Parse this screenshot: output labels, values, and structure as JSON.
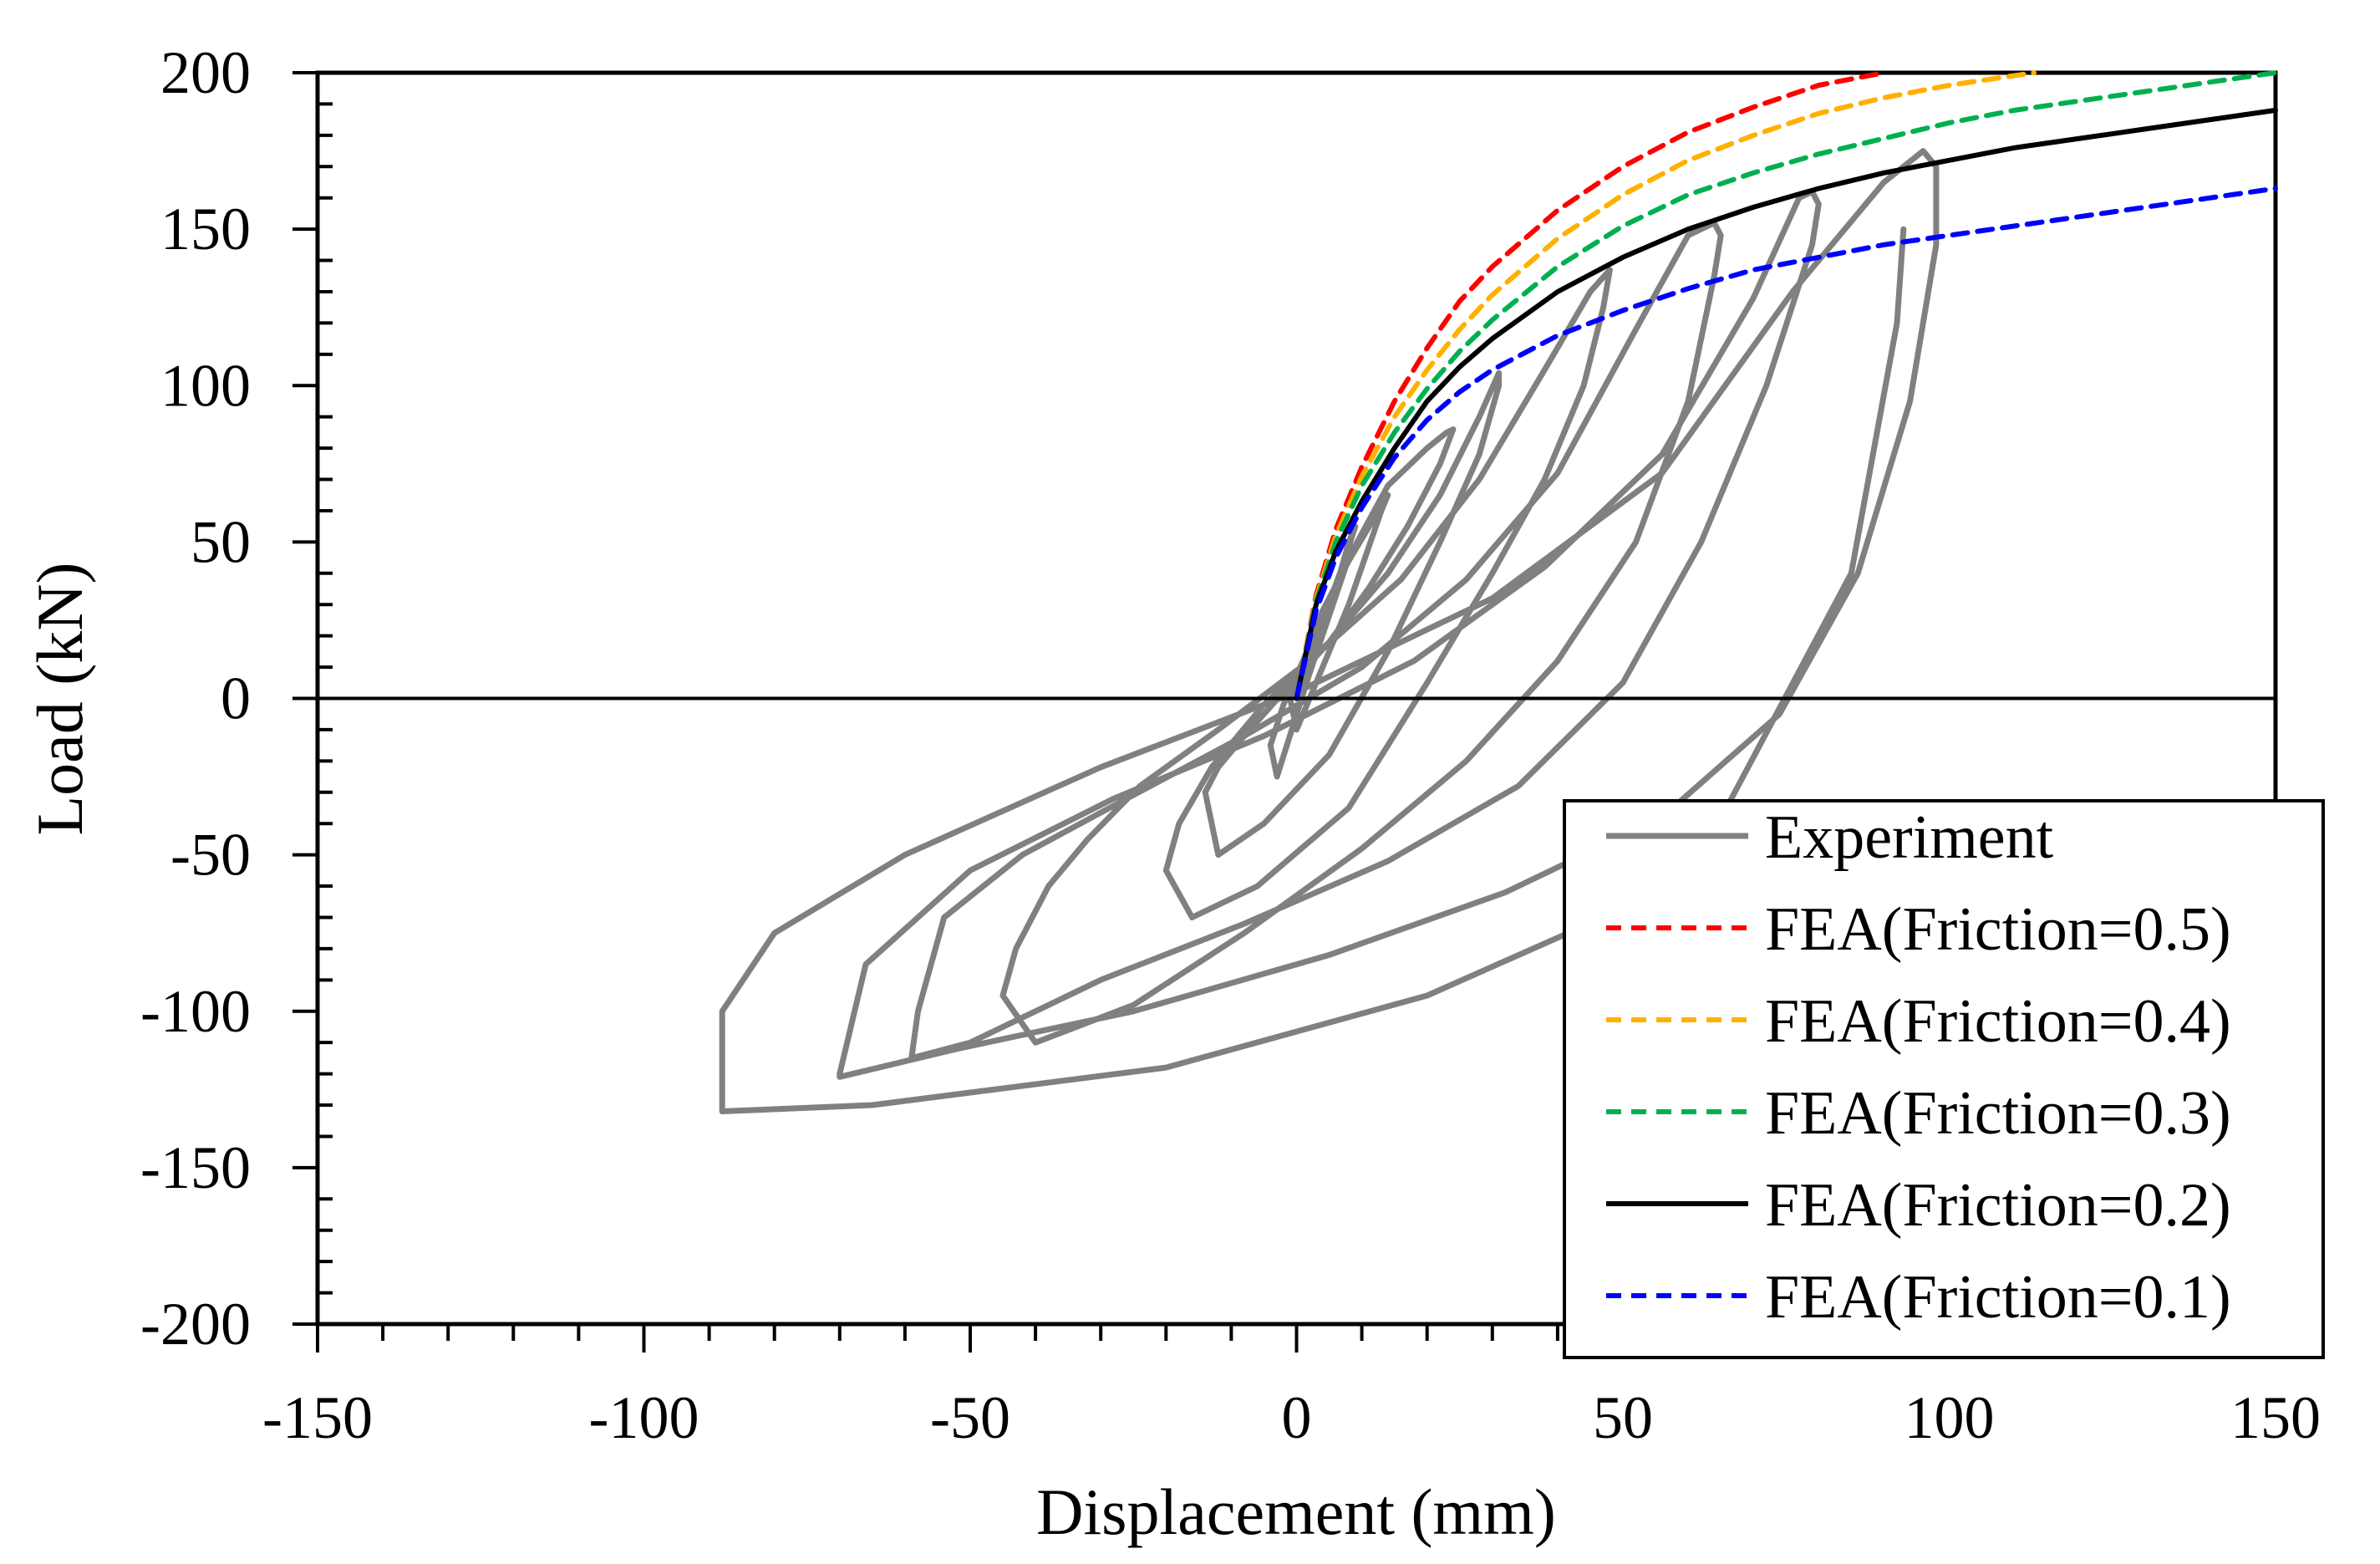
{
  "chart_data": {
    "type": "line",
    "title": "",
    "xlabel": "Displacement (mm)",
    "ylabel": "Load (kN)",
    "xlim": [
      -150,
      150
    ],
    "ylim": [
      -200,
      200
    ],
    "x_ticks": [
      "-150",
      "-100",
      "-50",
      "0",
      "50",
      "100",
      "150"
    ],
    "y_ticks": [
      "200",
      "150",
      "100",
      "50",
      "0",
      "-50",
      "-100",
      "-150",
      "-200"
    ],
    "x_tick_values": [
      -150,
      -100,
      -50,
      0,
      50,
      100,
      150
    ],
    "y_tick_values": [
      200,
      150,
      100,
      50,
      0,
      -50,
      -100,
      -150,
      -200
    ],
    "legend_position": "bottom-right",
    "series": [
      {
        "name": "Experiment",
        "color": "#808080",
        "style": "solid",
        "x": [
          0,
          3,
          6,
          8,
          9,
          7,
          4,
          1,
          -1,
          0,
          4,
          8,
          11,
          13,
          14,
          12,
          8,
          4,
          1,
          -2,
          -4,
          -3,
          2,
          8,
          14,
          20,
          23,
          24,
          22,
          17,
          11,
          5,
          -2,
          -8,
          -12,
          -14,
          -12,
          -5,
          5,
          14,
          22,
          28,
          31,
          31,
          28,
          22,
          14,
          5,
          -5,
          -13,
          -18,
          -20,
          -16,
          -6,
          8,
          20,
          30,
          38,
          44,
          47,
          48,
          45,
          38,
          28,
          16,
          2,
          -12,
          -24,
          -32,
          -38,
          -43,
          -45,
          -40,
          -25,
          -8,
          10,
          26,
          40,
          52,
          60,
          64,
          65,
          64,
          60,
          52,
          40,
          26,
          10,
          -8,
          -26,
          -42,
          -54,
          -58,
          -59,
          -50,
          -30,
          -8,
          14,
          34,
          50,
          62,
          72,
          79,
          80,
          79,
          77,
          70,
          56,
          38,
          18,
          -5,
          -28,
          -50,
          -66,
          -70,
          -70,
          -52,
          -25,
          5,
          32,
          56,
          74,
          86,
          94,
          98,
          98,
          96,
          90,
          76,
          56,
          30,
          0,
          -30,
          -60,
          -80,
          -88,
          -88,
          -65,
          -20,
          20,
          60,
          85,
          92,
          93
        ],
        "y": [
          0,
          15,
          35,
          50,
          55,
          42,
          25,
          8,
          0,
          -10,
          10,
          30,
          48,
          60,
          65,
          58,
          44,
          28,
          12,
          -2,
          -15,
          -25,
          8,
          45,
          68,
          80,
          85,
          86,
          75,
          55,
          35,
          18,
          2,
          -12,
          -22,
          -30,
          -50,
          -40,
          -18,
          15,
          50,
          78,
          100,
          104,
          90,
          65,
          40,
          18,
          -2,
          -22,
          -40,
          -55,
          -70,
          -60,
          -35,
          5,
          40,
          70,
          100,
          125,
          137,
          130,
          105,
          70,
          38,
          12,
          -10,
          -28,
          -45,
          -60,
          -80,
          -95,
          -110,
          -98,
          -75,
          -48,
          -20,
          12,
          50,
          95,
          135,
          148,
          152,
          148,
          118,
          72,
          38,
          10,
          -12,
          -32,
          -50,
          -70,
          -100,
          -115,
          -110,
          -90,
          -72,
          -52,
          -28,
          5,
          50,
          100,
          145,
          158,
          162,
          160,
          128,
          78,
          42,
          12,
          -12,
          -32,
          -55,
          -85,
          -120,
          -121,
          -112,
          -100,
          -82,
          -62,
          -38,
          -5,
          40,
          95,
          145,
          170,
          175,
          165,
          130,
          72,
          32,
          2,
          -22,
          -50,
          -75,
          -100,
          -132,
          -130,
          -118,
          -95,
          -58,
          40,
          120,
          150
        ]
      },
      {
        "name": "FEA(Friction=0.5)",
        "color": "#ff0000",
        "style": "dashed",
        "x": [
          0,
          3,
          6,
          10,
          15,
          20,
          25,
          30,
          40,
          50,
          60,
          70,
          80,
          90
        ],
        "y": [
          0,
          33,
          54,
          74,
          95,
          112,
          127,
          138,
          156,
          170,
          181,
          189,
          196,
          200
        ]
      },
      {
        "name": "FEA(Friction=0.4)",
        "color": "#ffb000",
        "style": "dashed",
        "x": [
          0,
          3,
          6,
          10,
          15,
          20,
          25,
          30,
          40,
          50,
          60,
          70,
          80,
          90,
          100,
          113
        ],
        "y": [
          0,
          32,
          52,
          71,
          90,
          105,
          118,
          129,
          147,
          161,
          172,
          180,
          187,
          192,
          196,
          200
        ]
      },
      {
        "name": "FEA(Friction=0.3)",
        "color": "#00b050",
        "style": "dashed",
        "x": [
          0,
          3,
          6,
          10,
          15,
          20,
          25,
          30,
          40,
          50,
          60,
          70,
          80,
          90,
          100,
          110,
          120,
          130,
          140,
          150
        ],
        "y": [
          0,
          31,
          50,
          68,
          85,
          99,
          111,
          121,
          138,
          151,
          161,
          168,
          174,
          179,
          184,
          188,
          191,
          194,
          197,
          200
        ]
      },
      {
        "name": "FEA(Friction=0.2)",
        "color": "#000000",
        "style": "solid",
        "x": [
          0,
          3,
          6,
          10,
          15,
          20,
          25,
          30,
          40,
          50,
          60,
          70,
          80,
          90,
          100,
          110,
          120,
          130,
          140,
          150
        ],
        "y": [
          0,
          30,
          47,
          63,
          80,
          95,
          106,
          115,
          130,
          141,
          150,
          157,
          163,
          168,
          172,
          176,
          179,
          182,
          185,
          188
        ]
      },
      {
        "name": "FEA(Friction=0.1)",
        "color": "#0000ff",
        "style": "dashed",
        "x": [
          0,
          3,
          6,
          10,
          15,
          20,
          25,
          30,
          40,
          50,
          60,
          70,
          80,
          90,
          100,
          110,
          120,
          130,
          140,
          150
        ],
        "y": [
          0,
          28,
          45,
          61,
          77,
          89,
          98,
          105,
          116,
          124,
          131,
          137,
          141,
          145,
          148,
          151,
          154,
          157,
          160,
          163
        ]
      }
    ]
  }
}
